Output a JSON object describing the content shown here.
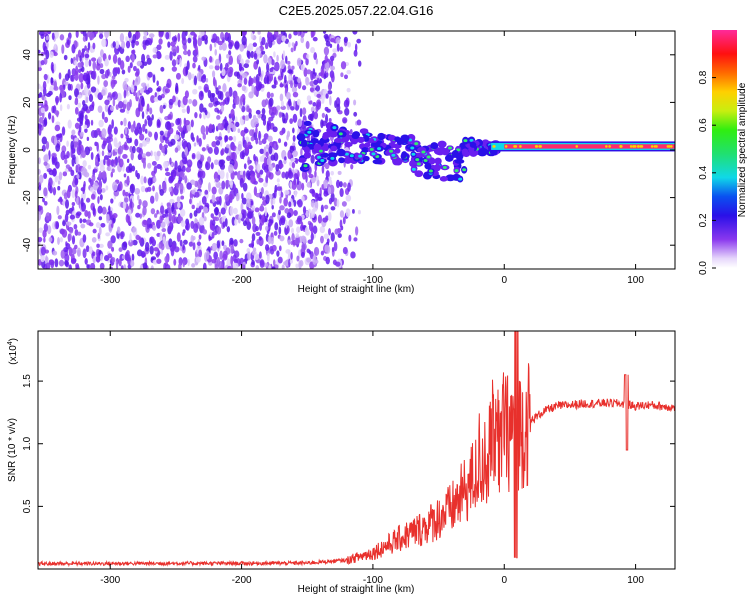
{
  "title": "C2E5.2025.057.22.04.G16",
  "colors": {
    "signal": "#e8302c",
    "noise": "#7a2ff0",
    "band": "#ff2a6a"
  },
  "chart_data": [
    {
      "type": "heatmap",
      "xlabel": "Height of straight line (km)",
      "ylabel": "Frequency (Hz)",
      "xlim": [
        -355,
        130
      ],
      "ylim": [
        -50,
        50
      ],
      "xticks": [
        "-300",
        "-200",
        "-100",
        "0",
        "100"
      ],
      "xtick_values": [
        -300,
        -200,
        -100,
        0,
        100
      ],
      "yticks": [
        "-40",
        "-20",
        "0",
        "20",
        "40"
      ],
      "ytick_values": [
        -40,
        -20,
        0,
        20,
        40
      ],
      "colorbar": {
        "label": "Normalized spectral amplitude",
        "range": [
          0,
          1
        ],
        "ticks": [
          "0.0",
          "0.2",
          "0.4",
          "0.6",
          "0.8"
        ],
        "tick_values": [
          0.0,
          0.2,
          0.4,
          0.6,
          0.8
        ]
      },
      "features": {
        "noise_region_x": [
          -355,
          -130
        ],
        "tone_trace": [
          [
            -150,
            3
          ],
          [
            -120,
            2
          ],
          [
            -90,
            0
          ],
          [
            -60,
            2
          ],
          [
            -30,
            1
          ],
          [
            0,
            1
          ],
          [
            50,
            1
          ],
          [
            130,
            1
          ]
        ]
      }
    },
    {
      "type": "line",
      "xlabel": "Height of straight line (km)",
      "ylabel": "SNR (10 * v/v)",
      "yscale_label": "(x10",
      "yscale_exp": "4",
      "xlim": [
        -355,
        130
      ],
      "ylim": [
        0,
        19000
      ],
      "xticks": [
        "-300",
        "-200",
        "-100",
        "0",
        "100"
      ],
      "xtick_values": [
        -300,
        -200,
        -100,
        0,
        100
      ],
      "yticks": [
        "0.5",
        "1.0",
        "1.5"
      ],
      "ytick_values": [
        5000,
        10000,
        15000
      ],
      "series": [
        {
          "x": [
            -355,
            -300,
            -250,
            -200,
            -150,
            -120,
            -100,
            -80,
            -60,
            -40,
            -30,
            -20,
            -10,
            0,
            5,
            10,
            20,
            30,
            40,
            60,
            80,
            90,
            100,
            110,
            120,
            130
          ],
          "y": [
            420,
            440,
            450,
            450,
            480,
            700,
            1300,
            2400,
            3400,
            4800,
            6200,
            7800,
            9500,
            10600,
            11200,
            11200,
            11800,
            12600,
            13000,
            13200,
            13250,
            13200,
            13000,
            13100,
            13000,
            12900
          ]
        }
      ]
    }
  ]
}
